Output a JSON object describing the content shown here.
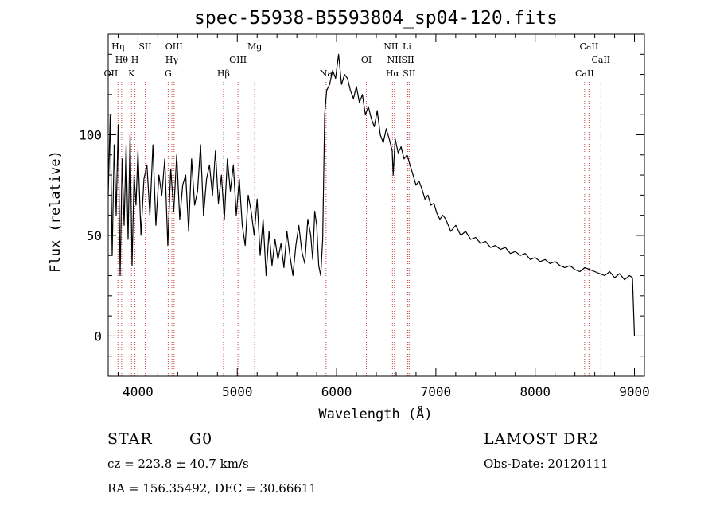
{
  "title": "spec-55938-B5593804_sp04-120.fits",
  "info": {
    "object_class": "STAR",
    "subclass": "G0",
    "redshift": "cz = 223.8 ± 40.7 km/s",
    "coords": "RA = 156.35492, DEC =  30.66611",
    "survey": "LAMOST DR2",
    "obs_date": "Obs-Date: 20120111"
  },
  "chart_data": {
    "type": "line",
    "xlabel": "Wavelength (Å)",
    "ylabel": "Flux (relative)",
    "xlim": [
      3700,
      9100
    ],
    "ylim": [
      -20,
      150
    ],
    "xticks": [
      "4000",
      "5000",
      "6000",
      "7000",
      "8000",
      "9000"
    ],
    "yticks": [
      "0",
      "50",
      "100"
    ],
    "series": [
      {
        "x": [
          3700,
          3720,
          3740,
          3760,
          3780,
          3800,
          3820,
          3840,
          3860,
          3880,
          3900,
          3920,
          3940,
          3960,
          3980,
          4000,
          4030,
          4060,
          4090,
          4120,
          4150,
          4180,
          4210,
          4240,
          4270,
          4300,
          4330,
          4360,
          4390,
          4420,
          4450,
          4480,
          4510,
          4540,
          4570,
          4600,
          4630,
          4660,
          4690,
          4720,
          4750,
          4780,
          4810,
          4840,
          4870,
          4900,
          4930,
          4960,
          4990,
          5020,
          5050,
          5080,
          5110,
          5140,
          5170,
          5200,
          5230,
          5260,
          5290,
          5320,
          5350,
          5380,
          5410,
          5440,
          5470,
          5500,
          5530,
          5560,
          5590,
          5620,
          5650,
          5680,
          5710,
          5740,
          5760,
          5780,
          5800,
          5820,
          5840,
          5860,
          5880,
          5900,
          5930,
          5960,
          5990,
          6020,
          6050,
          6080,
          6110,
          6140,
          6170,
          6200,
          6230,
          6260,
          6290,
          6320,
          6350,
          6380,
          6410,
          6440,
          6470,
          6500,
          6530,
          6560,
          6570,
          6590,
          6620,
          6650,
          6680,
          6710,
          6740,
          6770,
          6800,
          6830,
          6860,
          6890,
          6920,
          6950,
          6980,
          7010,
          7040,
          7070,
          7100,
          7150,
          7200,
          7250,
          7300,
          7350,
          7400,
          7450,
          7500,
          7550,
          7600,
          7650,
          7700,
          7750,
          7800,
          7850,
          7900,
          7950,
          8000,
          8050,
          8100,
          8150,
          8200,
          8250,
          8300,
          8350,
          8400,
          8450,
          8500,
          8550,
          8600,
          8650,
          8700,
          8750,
          8800,
          8850,
          8900,
          8950,
          8980,
          9000
        ],
        "y": [
          70,
          110,
          40,
          95,
          60,
          105,
          30,
          88,
          55,
          95,
          48,
          100,
          35,
          80,
          65,
          92,
          50,
          78,
          85,
          60,
          95,
          55,
          80,
          70,
          88,
          45,
          83,
          62,
          90,
          58,
          75,
          80,
          52,
          88,
          65,
          72,
          95,
          60,
          78,
          85,
          70,
          92,
          66,
          80,
          58,
          88,
          72,
          85,
          60,
          78,
          55,
          45,
          70,
          62,
          50,
          68,
          40,
          58,
          30,
          52,
          35,
          48,
          38,
          46,
          34,
          52,
          40,
          30,
          45,
          55,
          42,
          36,
          58,
          50,
          38,
          62,
          55,
          35,
          30,
          48,
          110,
          122,
          125,
          132,
          128,
          140,
          125,
          130,
          128,
          122,
          118,
          124,
          116,
          120,
          110,
          114,
          108,
          104,
          112,
          100,
          96,
          103,
          98,
          92,
          80,
          98,
          91,
          94,
          88,
          90,
          85,
          80,
          75,
          77,
          73,
          68,
          70,
          65,
          66,
          61,
          58,
          60,
          58,
          52,
          55,
          50,
          52,
          48,
          49,
          46,
          47,
          44,
          45,
          43,
          44,
          41,
          42,
          40,
          41,
          38,
          39,
          37,
          38,
          36,
          37,
          35,
          34,
          35,
          33,
          32,
          34,
          33,
          32,
          31,
          30,
          32,
          29,
          31,
          28,
          30,
          29,
          0
        ]
      }
    ],
    "lines": [
      {
        "wave": 3727,
        "row": 2,
        "label": "OII"
      },
      {
        "wave": 3798,
        "row": 0,
        "label": "Hη"
      },
      {
        "wave": 3835,
        "row": 1,
        "label": "Hθ"
      },
      {
        "wave": 3934,
        "row": 2,
        "label": "K"
      },
      {
        "wave": 3969,
        "row": 1,
        "label": "H"
      },
      {
        "wave": 4072,
        "row": 0,
        "label": "SII"
      },
      {
        "wave": 4304,
        "row": 2,
        "label": "G"
      },
      {
        "wave": 4341,
        "row": 1,
        "label": "Hγ"
      },
      {
        "wave": 4363,
        "row": 0,
        "label": "OIII"
      },
      {
        "wave": 4861,
        "row": 2,
        "label": "Hβ"
      },
      {
        "wave": 5007,
        "row": 1,
        "label": "OIII"
      },
      {
        "wave": 5175,
        "row": 0,
        "label": "Mg"
      },
      {
        "wave": 5894,
        "row": 2,
        "label": "Na"
      },
      {
        "wave": 6300,
        "row": 1,
        "label": "OI"
      },
      {
        "wave": 6548,
        "row": 0,
        "label": "NII"
      },
      {
        "wave": 6563,
        "row": 2,
        "label": "Hα"
      },
      {
        "wave": 6583,
        "row": 1,
        "label": "NII"
      },
      {
        "wave": 6708,
        "row": 0,
        "label": "Li"
      },
      {
        "wave": 6717,
        "row": 1,
        "label": "SII"
      },
      {
        "wave": 6731,
        "row": 2,
        "label": "SII"
      },
      {
        "wave": 8498,
        "row": 2,
        "label": "CaII"
      },
      {
        "wave": 8542,
        "row": 0,
        "label": "CaII"
      },
      {
        "wave": 8662,
        "row": 1,
        "label": "CaII"
      }
    ]
  }
}
